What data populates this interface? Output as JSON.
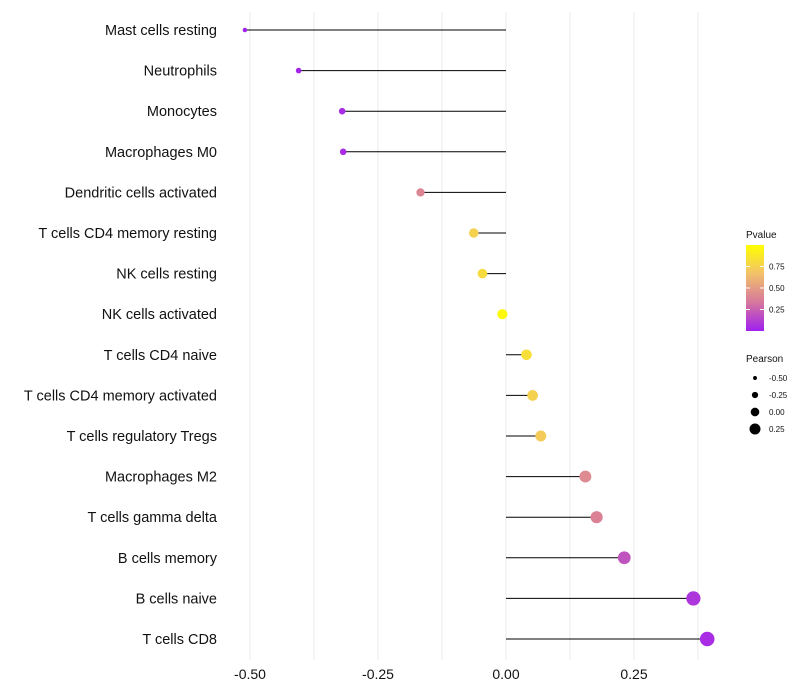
{
  "chart_data": {
    "type": "lollipop",
    "categories": [
      "Mast cells resting",
      "Neutrophils",
      "Monocytes",
      "Macrophages M0",
      "Dendritic cells activated",
      "T cells CD4 memory resting",
      "NK cells resting",
      "NK cells activated",
      "T cells CD4 naive",
      "T cells CD4 memory activated",
      "T cells regulatory  Tregs ",
      "Macrophages M2",
      "T cells gamma delta",
      "B cells memory",
      "B cells naive",
      "T cells CD8"
    ],
    "pearson": [
      -0.51,
      -0.405,
      -0.32,
      -0.318,
      -0.167,
      -0.063,
      -0.046,
      -0.007,
      0.04,
      0.052,
      0.068,
      0.155,
      0.177,
      0.231,
      0.366,
      0.393
    ],
    "pvalue": [
      0.01,
      0.02,
      0.05,
      0.05,
      0.4,
      0.75,
      0.8,
      0.97,
      0.82,
      0.75,
      0.72,
      0.42,
      0.38,
      0.2,
      0.08,
      0.05
    ],
    "xlim": [
      -0.55,
      0.45
    ],
    "x_ticks": [
      -0.5,
      -0.25,
      0.0,
      0.25
    ],
    "x_tick_labels": [
      "-0.50",
      "-0.25",
      "0.00",
      "0.25"
    ],
    "x_minor_ticks": [
      -0.375,
      -0.125,
      0.125,
      0.375
    ],
    "xlabel": "",
    "ylabel": "",
    "legend_color": {
      "title": "Pvalue",
      "ticks": [
        0.25,
        0.5,
        0.75
      ],
      "tick_labels": [
        "0.25",
        "0.50",
        "0.75"
      ],
      "range": [
        0.0,
        1.0
      ],
      "colors": [
        "#a020f0",
        "#d6779d",
        "#f2c16a",
        "#ffff00"
      ]
    },
    "legend_size": {
      "title": "Pearson",
      "values": [
        -0.5,
        -0.25,
        0.0,
        0.25
      ],
      "labels": [
        "-0.50",
        "-0.25",
        "0.00",
        "0.25"
      ]
    }
  }
}
